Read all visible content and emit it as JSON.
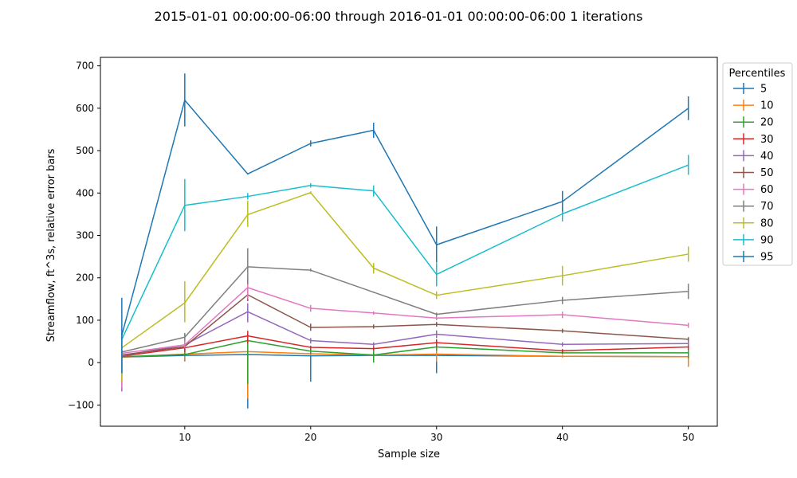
{
  "chart_data": {
    "type": "line",
    "title": "2015-01-01 00:00:00-06:00 through 2016-01-01 00:00:00-06:00 1 iterations",
    "xlabel": "Sample size",
    "ylabel": "Streamflow, ft^3s, relative error bars",
    "xlim": [
      3.3,
      52.3
    ],
    "ylim": [
      -150,
      720
    ],
    "x_ticks": [
      10,
      20,
      30,
      40,
      50
    ],
    "y_ticks": [
      -100,
      0,
      100,
      200,
      300,
      400,
      500,
      600,
      700
    ],
    "grid": false,
    "legend": {
      "title": "Percentiles",
      "placement": "outside-right"
    },
    "x": [
      5,
      10,
      15,
      20,
      25,
      30,
      40,
      50
    ],
    "series": [
      {
        "name": "5",
        "color": "#1f77b4",
        "values": [
          13,
          17,
          19,
          16,
          17,
          17,
          15,
          14
        ],
        "err": [
          null,
          [
            3,
            33
          ],
          [
            -108,
            18
          ],
          [
            -45,
            17
          ],
          null,
          [
            -25,
            30
          ],
          null,
          null
        ]
      },
      {
        "name": "10",
        "color": "#ff7f0e",
        "values": [
          13,
          20,
          26,
          21,
          18,
          20,
          15,
          14
        ],
        "err": [
          [
            -30,
            14
          ],
          [
            5,
            30
          ],
          [
            -85,
            30
          ],
          [
            18,
            24
          ],
          [
            12,
            24
          ],
          [
            2,
            40
          ],
          [
            12,
            18
          ],
          [
            -10,
            16
          ]
        ]
      },
      {
        "name": "20",
        "color": "#2ca02c",
        "values": [
          14,
          19,
          52,
          27,
          18,
          37,
          23,
          23
        ],
        "err": [
          null,
          [
            15,
            24
          ],
          [
            -50,
            55
          ],
          [
            20,
            31
          ],
          [
            0,
            28
          ],
          [
            28,
            40
          ],
          [
            20,
            27
          ],
          [
            10,
            30
          ]
        ]
      },
      {
        "name": "30",
        "color": "#d62728",
        "values": [
          15,
          35,
          63,
          36,
          33,
          47,
          28,
          37
        ],
        "err": [
          [
            -20,
            20
          ],
          [
            25,
            40
          ],
          [
            45,
            75
          ],
          [
            30,
            40
          ],
          [
            28,
            38
          ],
          [
            38,
            55
          ],
          [
            22,
            32
          ],
          [
            30,
            42
          ]
        ]
      },
      {
        "name": "40",
        "color": "#9467bd",
        "values": [
          16,
          42,
          120,
          52,
          43,
          67,
          43,
          45
        ],
        "err": [
          [
            -68,
            22
          ],
          [
            35,
            48
          ],
          [
            95,
            140
          ],
          [
            45,
            58
          ],
          [
            38,
            48
          ],
          [
            58,
            76
          ],
          [
            38,
            48
          ],
          [
            40,
            50
          ]
        ]
      },
      {
        "name": "50",
        "color": "#8c564b",
        "values": [
          18,
          38,
          160,
          83,
          85,
          90,
          75,
          55
        ],
        "err": [
          [
            12,
            28
          ],
          [
            32,
            45
          ],
          [
            145,
            178
          ],
          [
            75,
            92
          ],
          [
            80,
            90
          ],
          [
            85,
            96
          ],
          [
            70,
            80
          ],
          [
            50,
            60
          ]
        ]
      },
      {
        "name": "60",
        "color": "#e377c2",
        "values": [
          22,
          42,
          177,
          128,
          117,
          105,
          113,
          88
        ],
        "err": [
          [
            -60,
            30
          ],
          [
            35,
            50
          ],
          [
            150,
            200
          ],
          [
            120,
            136
          ],
          [
            113,
            121
          ],
          [
            100,
            110
          ],
          [
            105,
            120
          ],
          [
            82,
            94
          ]
        ]
      },
      {
        "name": "70",
        "color": "#7f7f7f",
        "values": [
          25,
          60,
          226,
          218,
          166,
          114,
          147,
          168
        ],
        "err": [
          [
            15,
            35
          ],
          [
            50,
            70
          ],
          [
            185,
            270
          ],
          [
            215,
            222
          ],
          null,
          [
            110,
            118
          ],
          [
            138,
            155
          ],
          [
            150,
            186
          ]
        ]
      },
      {
        "name": "80",
        "color": "#bcbd22",
        "values": [
          35,
          141,
          349,
          401,
          223,
          159,
          205,
          256
        ],
        "err": [
          [
            -45,
            55
          ],
          [
            95,
            192
          ],
          [
            320,
            382
          ],
          [
            398,
            404
          ],
          [
            210,
            235
          ],
          [
            150,
            168
          ],
          [
            182,
            228
          ],
          [
            238,
            274
          ]
        ]
      },
      {
        "name": "90",
        "color": "#17becf",
        "values": [
          55,
          371,
          392,
          418,
          405,
          208,
          351,
          466
        ],
        "err": [
          [
            20,
            70
          ],
          [
            310,
            433
          ],
          [
            385,
            400
          ],
          [
            413,
            423
          ],
          [
            392,
            418
          ],
          [
            180,
            235
          ],
          [
            333,
            370
          ],
          [
            443,
            490
          ]
        ]
      },
      {
        "name": "95",
        "color": "#1f77b4",
        "values": [
          65,
          619,
          445,
          517,
          548,
          278,
          380,
          600
        ],
        "err": [
          [
            -25,
            153
          ],
          [
            557,
            682
          ],
          null,
          [
            510,
            524
          ],
          [
            530,
            566
          ],
          [
            236,
            321
          ],
          [
            356,
            405
          ],
          [
            572,
            628
          ]
        ]
      }
    ]
  }
}
